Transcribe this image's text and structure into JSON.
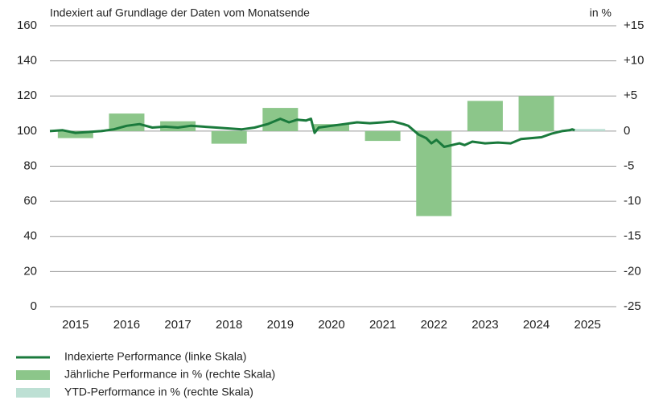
{
  "chart_data": {
    "type": "combo",
    "subtitle": "Indexiert auf Grundlage der Daten vom Monatsende",
    "y2_label": "in %",
    "categories": [
      "2015",
      "2016",
      "2017",
      "2018",
      "2019",
      "2020",
      "2021",
      "2022",
      "2023",
      "2024",
      "2025"
    ],
    "xlim": [
      2015,
      2026
    ],
    "ylim": [
      0,
      160
    ],
    "yticks": [
      0,
      20,
      40,
      60,
      80,
      100,
      120,
      140,
      160
    ],
    "y2lim": [
      -25,
      15
    ],
    "y2ticks": [
      -25,
      -20,
      -15,
      -10,
      -5,
      0,
      {
        "value": 5,
        "label": "+5"
      },
      {
        "value": 10,
        "label": "+10"
      },
      {
        "value": 15,
        "label": "+15"
      }
    ],
    "grid": true,
    "legend": "bottom",
    "series": [
      {
        "name": "Indexierte Performance (linke Skala)",
        "type": "line",
        "color": "#1a7a3c",
        "x": [
          2015.0,
          2015.25,
          2015.5,
          2015.75,
          2016.0,
          2016.25,
          2016.5,
          2016.75,
          2017.0,
          2017.25,
          2017.5,
          2017.75,
          2018.0,
          2018.25,
          2018.5,
          2018.75,
          2019.0,
          2019.25,
          2019.5,
          2019.67,
          2019.83,
          2020.0,
          2020.1,
          2020.17,
          2020.25,
          2020.5,
          2020.75,
          2021.0,
          2021.25,
          2021.5,
          2021.7,
          2021.9,
          2022.0,
          2022.2,
          2022.35,
          2022.45,
          2022.55,
          2022.7,
          2022.85,
          2023.0,
          2023.1,
          2023.25,
          2023.5,
          2023.75,
          2024.0,
          2024.2,
          2024.4,
          2024.6,
          2024.8,
          2025.0,
          2025.15,
          2025.2,
          2025.25
        ],
        "values": [
          100,
          100.5,
          99,
          99.5,
          100,
          101,
          103,
          104,
          102,
          102.5,
          102,
          103,
          102.5,
          102,
          101.5,
          101,
          102,
          104,
          107,
          105,
          106.5,
          106,
          107,
          99,
          102,
          103,
          104,
          105,
          104.5,
          105,
          105.5,
          104,
          103,
          98,
          96,
          93,
          95,
          91,
          92,
          93,
          92,
          94,
          93,
          93.5,
          93,
          95.5,
          96,
          96.5,
          98.5,
          100,
          100.5,
          101,
          100.5
        ]
      },
      {
        "name": "Jährliche Performance in % (rechte Skala)",
        "type": "bar",
        "axis": "y2",
        "color": "#8cc68a",
        "values": [
          -1.0,
          2.5,
          1.4,
          -1.8,
          3.3,
          1.0,
          -1.4,
          -12.1,
          4.3,
          5.0,
          null
        ]
      },
      {
        "name": "YTD-Performance in % (rechte Skala)",
        "type": "bar",
        "axis": "y2",
        "color": "#bde0d4",
        "values": [
          null,
          null,
          null,
          null,
          null,
          null,
          null,
          null,
          null,
          null,
          0.3
        ]
      }
    ]
  }
}
